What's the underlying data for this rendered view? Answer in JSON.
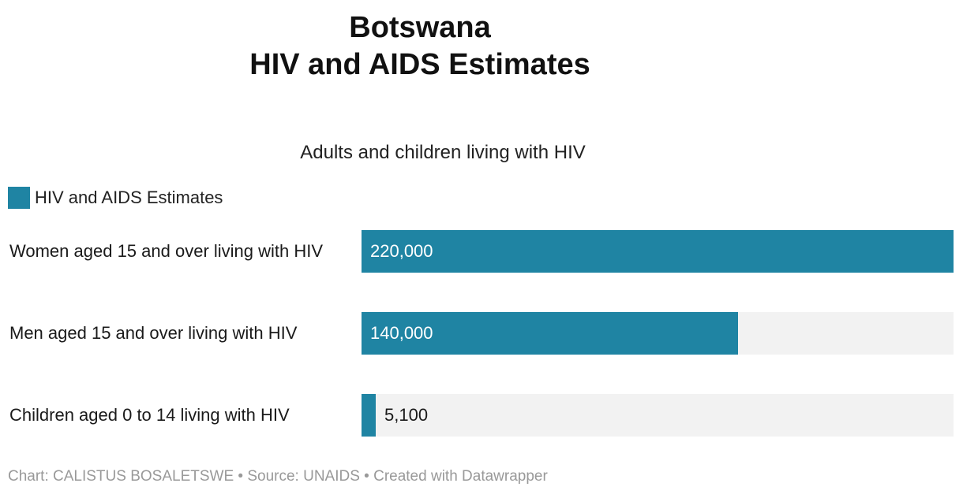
{
  "colors": {
    "bar": "#1f84a3",
    "track": "#f2f2f2",
    "label_inside": "#ffffff",
    "label_outside": "#1a1a1a"
  },
  "chart_data": {
    "type": "bar",
    "orientation": "horizontal",
    "title_line1": "Botswana",
    "title_line2": "HIV and AIDS Estimates",
    "subtitle": "Adults and children living with HIV",
    "legend": [
      "HIV and AIDS Estimates"
    ],
    "legend_placement": "top-left",
    "categories": [
      "Women aged 15 and over living with HIV",
      "Men aged 15 and over living with HIV",
      "Children aged 0 to 14 living with HIV"
    ],
    "values": [
      220000,
      140000,
      5100
    ],
    "value_labels": [
      "220,000",
      "140,000",
      "5,100"
    ],
    "xlim": [
      0,
      220000
    ],
    "grid": false
  },
  "footer": {
    "text": "Chart: CALISTUS BOSALETSWE • Source: UNAIDS • Created with Datawrapper"
  }
}
